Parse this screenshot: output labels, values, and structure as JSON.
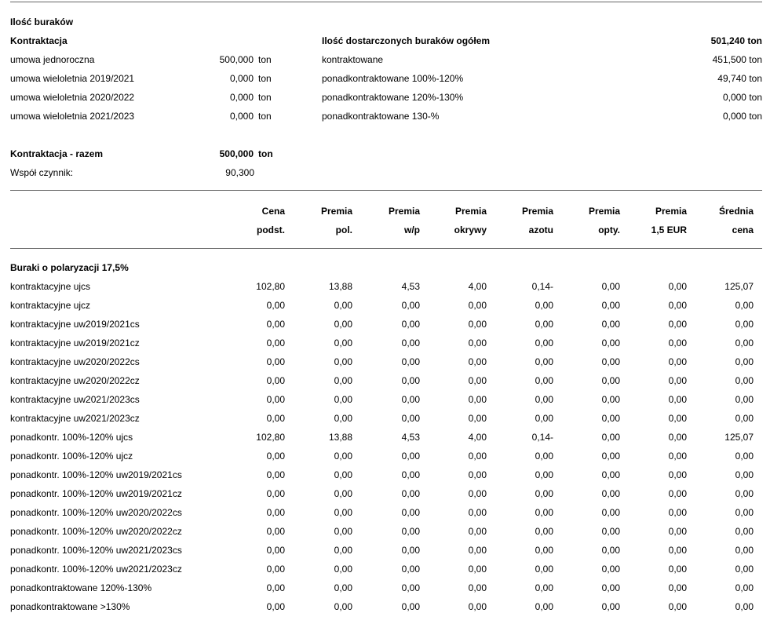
{
  "summary": {
    "title": "Ilość buraków",
    "contract_heading": "Kontraktacja",
    "contracts": [
      {
        "label": "umowa jednoroczna",
        "value": "500,000",
        "unit": "ton"
      },
      {
        "label": "umowa wieloletnia 2019/2021",
        "value": "0,000",
        "unit": "ton"
      },
      {
        "label": "umowa wieloletnia 2020/2022",
        "value": "0,000",
        "unit": "ton"
      },
      {
        "label": "umowa wieloletnia 2021/2023",
        "value": "0,000",
        "unit": "ton"
      }
    ],
    "total_label": "Kontraktacja - razem",
    "total_value": "500,000",
    "total_unit": "ton",
    "factor_label": "Współ czynnik:",
    "factor_value": "90,300",
    "delivered_heading": "Ilość dostarczonych buraków ogółem",
    "delivered_total": "501,240 ton",
    "delivered": [
      {
        "label": "kontraktowane",
        "value": "451,500 ton"
      },
      {
        "label": "ponadkontraktowane 100%-120%",
        "value": "49,740 ton"
      },
      {
        "label": "ponadkontraktowane 120%-130%",
        "value": "0,000 ton"
      },
      {
        "label": "ponadkontraktowane 130-%",
        "value": "0,000 ton"
      }
    ]
  },
  "table": {
    "headers": [
      [
        "Cena",
        "podst."
      ],
      [
        "Premia",
        "pol."
      ],
      [
        "Premia",
        "w/p"
      ],
      [
        "Premia",
        "okrywy"
      ],
      [
        "Premia",
        "azotu"
      ],
      [
        "Premia",
        "opty."
      ],
      [
        "Premia",
        "1,5 EUR"
      ],
      [
        "Średnia",
        "cena"
      ]
    ],
    "section": "Buraki o polaryzacji 17,5%",
    "rows": [
      {
        "label": "kontraktacyjne ujcs",
        "values": [
          "102,80",
          "13,88",
          "4,53",
          "4,00",
          "0,14-",
          "0,00",
          "0,00",
          "125,07"
        ]
      },
      {
        "label": "kontraktacyjne ujcz",
        "values": [
          "0,00",
          "0,00",
          "0,00",
          "0,00",
          "0,00",
          "0,00",
          "0,00",
          "0,00"
        ]
      },
      {
        "label": "kontraktacyjne uw2019/2021cs",
        "values": [
          "0,00",
          "0,00",
          "0,00",
          "0,00",
          "0,00",
          "0,00",
          "0,00",
          "0,00"
        ]
      },
      {
        "label": "kontraktacyjne uw2019/2021cz",
        "values": [
          "0,00",
          "0,00",
          "0,00",
          "0,00",
          "0,00",
          "0,00",
          "0,00",
          "0,00"
        ]
      },
      {
        "label": "kontraktacyjne uw2020/2022cs",
        "values": [
          "0,00",
          "0,00",
          "0,00",
          "0,00",
          "0,00",
          "0,00",
          "0,00",
          "0,00"
        ]
      },
      {
        "label": "kontraktacyjne uw2020/2022cz",
        "values": [
          "0,00",
          "0,00",
          "0,00",
          "0,00",
          "0,00",
          "0,00",
          "0,00",
          "0,00"
        ]
      },
      {
        "label": "kontraktacyjne uw2021/2023cs",
        "values": [
          "0,00",
          "0,00",
          "0,00",
          "0,00",
          "0,00",
          "0,00",
          "0,00",
          "0,00"
        ]
      },
      {
        "label": "kontraktacyjne uw2021/2023cz",
        "values": [
          "0,00",
          "0,00",
          "0,00",
          "0,00",
          "0,00",
          "0,00",
          "0,00",
          "0,00"
        ]
      },
      {
        "label": "ponadkontr. 100%-120% ujcs",
        "values": [
          "102,80",
          "13,88",
          "4,53",
          "4,00",
          "0,14-",
          "0,00",
          "0,00",
          "125,07"
        ]
      },
      {
        "label": "ponadkontr. 100%-120% ujcz",
        "values": [
          "0,00",
          "0,00",
          "0,00",
          "0,00",
          "0,00",
          "0,00",
          "0,00",
          "0,00"
        ]
      },
      {
        "label": "ponadkontr. 100%-120% uw2019/2021cs",
        "values": [
          "0,00",
          "0,00",
          "0,00",
          "0,00",
          "0,00",
          "0,00",
          "0,00",
          "0,00"
        ]
      },
      {
        "label": "ponadkontr. 100%-120% uw2019/2021cz",
        "values": [
          "0,00",
          "0,00",
          "0,00",
          "0,00",
          "0,00",
          "0,00",
          "0,00",
          "0,00"
        ]
      },
      {
        "label": "ponadkontr. 100%-120% uw2020/2022cs",
        "values": [
          "0,00",
          "0,00",
          "0,00",
          "0,00",
          "0,00",
          "0,00",
          "0,00",
          "0,00"
        ]
      },
      {
        "label": "ponadkontr. 100%-120% uw2020/2022cz",
        "values": [
          "0,00",
          "0,00",
          "0,00",
          "0,00",
          "0,00",
          "0,00",
          "0,00",
          "0,00"
        ]
      },
      {
        "label": "ponadkontr. 100%-120% uw2021/2023cs",
        "values": [
          "0,00",
          "0,00",
          "0,00",
          "0,00",
          "0,00",
          "0,00",
          "0,00",
          "0,00"
        ]
      },
      {
        "label": "ponadkontr. 100%-120% uw2021/2023cz",
        "values": [
          "0,00",
          "0,00",
          "0,00",
          "0,00",
          "0,00",
          "0,00",
          "0,00",
          "0,00"
        ]
      },
      {
        "label": "ponadkontraktowane 120%-130%",
        "values": [
          "0,00",
          "0,00",
          "0,00",
          "0,00",
          "0,00",
          "0,00",
          "0,00",
          "0,00"
        ]
      },
      {
        "label": "ponadkontraktowane >130%",
        "values": [
          "0,00",
          "0,00",
          "0,00",
          "0,00",
          "0,00",
          "0,00",
          "0,00",
          "0,00"
        ]
      }
    ]
  }
}
